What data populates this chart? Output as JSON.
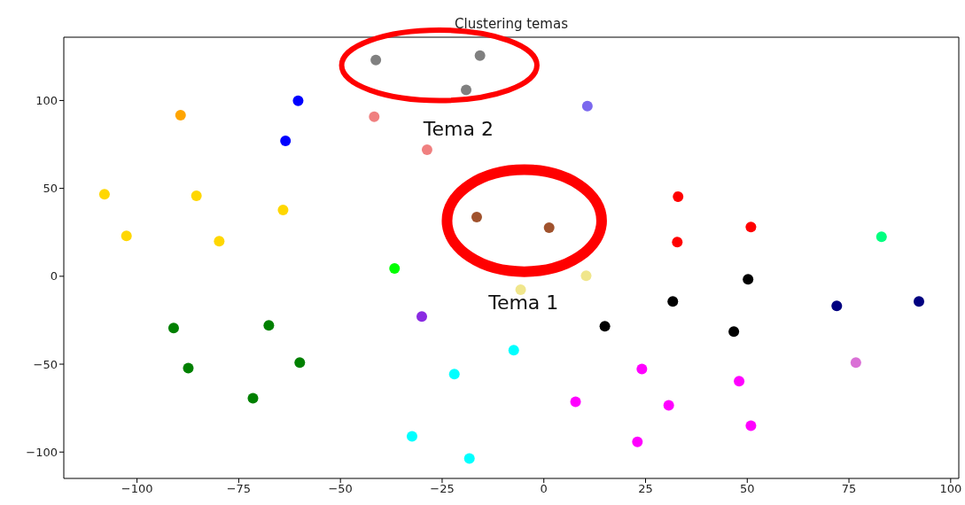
{
  "chart_data": {
    "type": "scatter",
    "title": "Clustering temas",
    "xlim": [
      -118,
      102
    ],
    "ylim": [
      -115,
      136
    ],
    "xticks": [
      -100,
      -75,
      -50,
      -25,
      0,
      25,
      50,
      75,
      100
    ],
    "yticks": [
      -100,
      -50,
      0,
      50,
      100
    ],
    "grid": false,
    "marker": "circle",
    "annotations": [
      "Tema 2",
      "Tema 1"
    ],
    "series": [
      {
        "color": "#808080",
        "x": [
          -41.3,
          -15.7,
          -19.1
        ],
        "values": [
          123,
          125.5,
          106
        ]
      },
      {
        "color": "#f08080",
        "x": [
          -41.7,
          -28.7
        ],
        "values": [
          90.8,
          72
        ]
      },
      {
        "color": "#0000ff",
        "x": [
          -60.4,
          -63.5
        ],
        "values": [
          99.8,
          77
        ]
      },
      {
        "color": "#ffa500",
        "x": [
          -89.3
        ],
        "values": [
          91.7
        ]
      },
      {
        "color": "#ffd700",
        "x": [
          -108,
          -102.6,
          -85.4,
          -79.8,
          -64.1
        ],
        "values": [
          46.7,
          23,
          45.8,
          20,
          37.7
        ]
      },
      {
        "color": "#7b68ee",
        "x": [
          10.7
        ],
        "values": [
          96.8
        ]
      },
      {
        "color": "#a0522d",
        "x": [
          -16.5,
          1.3
        ],
        "values": [
          33.7,
          27.6
        ]
      },
      {
        "color": "#ff0000",
        "x": [
          33,
          32.8,
          50.9
        ],
        "values": [
          45.3,
          19.5,
          28
        ]
      },
      {
        "color": "#00ff7f",
        "x": [
          83
        ],
        "values": [
          22.5
        ]
      },
      {
        "color": "#00ff00",
        "x": [
          -36.7
        ],
        "values": [
          4.4
        ]
      },
      {
        "color": "#f0e68c",
        "x": [
          -5.7,
          10.4
        ],
        "values": [
          -7.7,
          0.3
        ]
      },
      {
        "color": "#000000",
        "x": [
          50.2,
          31.7,
          15,
          46.7
        ],
        "values": [
          -1.7,
          -14.3,
          -28.4,
          -31.5
        ]
      },
      {
        "color": "#000080",
        "x": [
          72,
          92.2
        ],
        "values": [
          -16.8,
          -14.3
        ]
      },
      {
        "color": "#da70d6",
        "x": [
          76.7
        ],
        "values": [
          -49.1
        ]
      },
      {
        "color": "#8a2be2",
        "x": [
          -30
        ],
        "values": [
          -22.9
        ]
      },
      {
        "color": "#008000",
        "x": [
          -91,
          -87.4,
          -67.6,
          -60,
          -71.5
        ],
        "values": [
          -29.4,
          -52.2,
          -27.9,
          -49.1,
          -69.4
        ]
      },
      {
        "color": "#00ffff",
        "x": [
          -7.4,
          -22,
          -32.4,
          -18.3
        ],
        "values": [
          -42,
          -55.7,
          -91,
          -103.7
        ]
      },
      {
        "color": "#ff00ff",
        "x": [
          24.1,
          48,
          7.8,
          30.7,
          50.9,
          23
        ],
        "values": [
          -52.7,
          -59.7,
          -71.4,
          -73.4,
          -85,
          -94.2
        ]
      }
    ]
  }
}
